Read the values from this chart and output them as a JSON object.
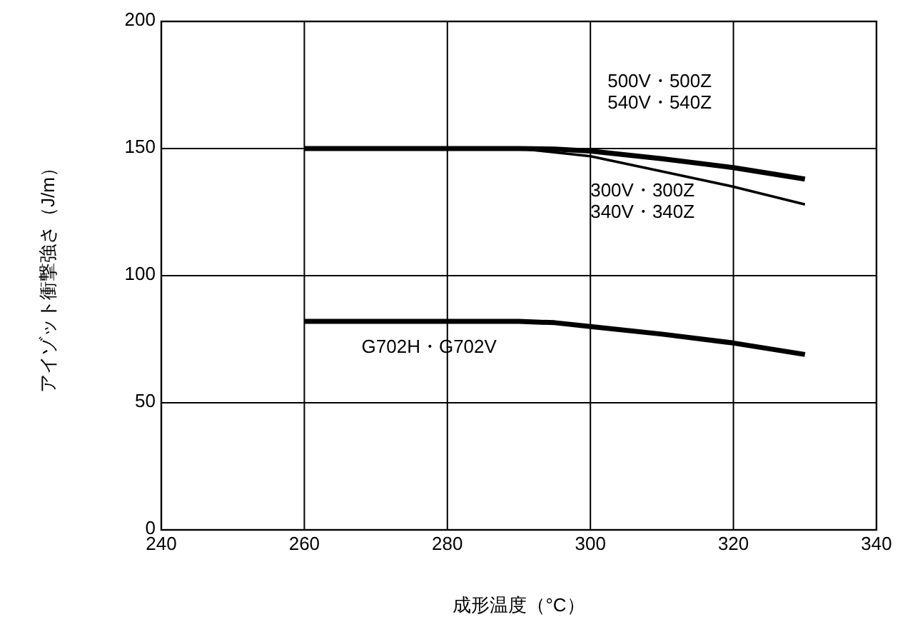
{
  "chart_data": {
    "type": "line",
    "xlabel": "成形温度（°C）",
    "ylabel": "アイゾット衝撃強さ（J/m）",
    "xlim": [
      240,
      340
    ],
    "xticks": [
      240,
      260,
      280,
      300,
      320,
      340
    ],
    "ylim": [
      0,
      200
    ],
    "yticks": [
      0,
      50,
      100,
      150,
      200
    ],
    "grid": true,
    "marker": "none",
    "line_style": "solid",
    "series": [
      {
        "name": "500V・500Z\n540V・540Z",
        "color": "#000000",
        "x": [
          260,
          290,
          295,
          300,
          310,
          320,
          330
        ],
        "values": [
          150,
          150,
          149.8,
          149,
          146,
          142.5,
          138
        ]
      },
      {
        "name": "300V・300Z\n340V・340Z",
        "color": "#000000",
        "x": [
          260,
          290,
          300,
          310,
          320,
          330
        ],
        "values": [
          150,
          150,
          147,
          141,
          135,
          128
        ]
      },
      {
        "name": "G702H・G702V",
        "color": "#000000",
        "x": [
          260,
          290,
          295,
          300,
          310,
          320,
          330
        ],
        "values": [
          82,
          82,
          81.5,
          80,
          77,
          73.5,
          69
        ]
      }
    ]
  }
}
